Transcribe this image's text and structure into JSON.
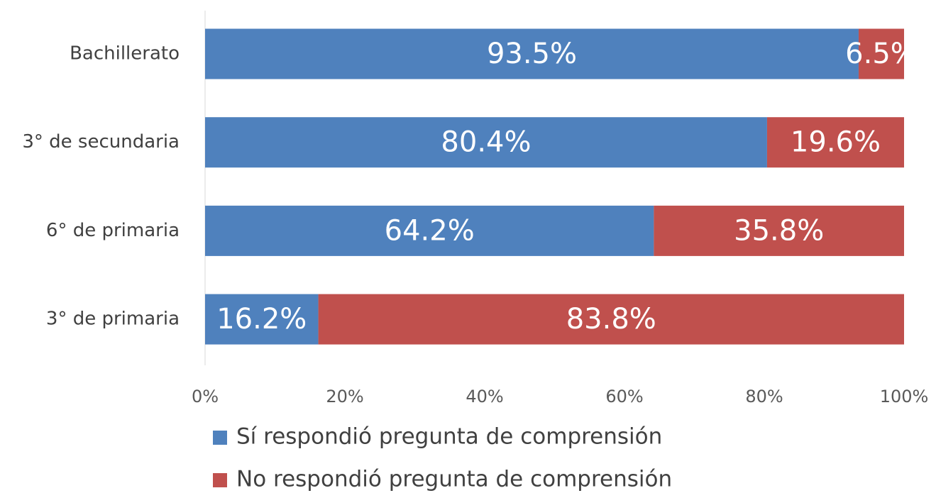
{
  "chart_data": {
    "type": "bar",
    "orientation": "horizontal",
    "stacked": true,
    "categories": [
      "Bachillerato",
      "3° de secundaria",
      "6° de primaria",
      "3° de primaria"
    ],
    "series": [
      {
        "name": "Sí respondió pregunta de comprensión",
        "color": "#4f81bd",
        "values": [
          93.5,
          80.4,
          64.2,
          16.2
        ],
        "value_labels": [
          "93.5%",
          "80.4%",
          "64.2%",
          "16.2%"
        ]
      },
      {
        "name": "No respondió pregunta de comprensión",
        "color": "#c0504d",
        "values": [
          6.5,
          19.6,
          35.8,
          83.8
        ],
        "value_labels": [
          "6.5%",
          "19.6%",
          "35.8%",
          "83.8%"
        ]
      }
    ],
    "xlim": [
      0,
      100
    ],
    "xticks": [
      {
        "value": 0,
        "label": "0%"
      },
      {
        "value": 20,
        "label": "20%"
      },
      {
        "value": 40,
        "label": "40%"
      },
      {
        "value": 60,
        "label": "60%"
      },
      {
        "value": 80,
        "label": "80%"
      },
      {
        "value": 100,
        "label": "100%"
      }
    ],
    "legend": "bottom"
  }
}
